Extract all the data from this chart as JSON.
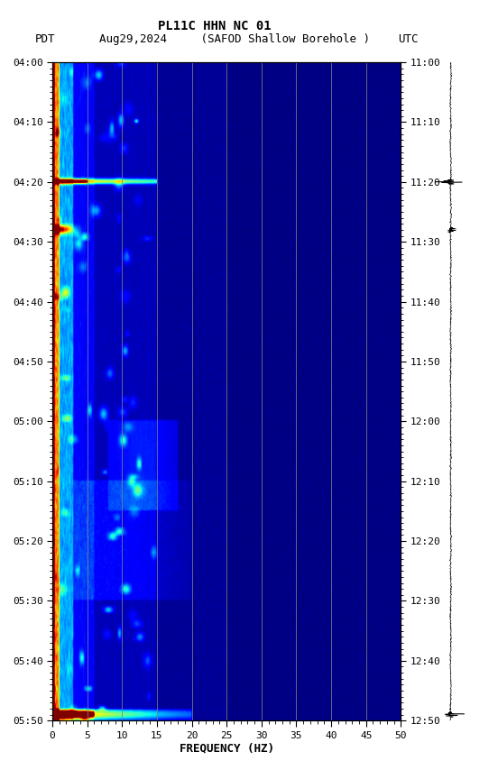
{
  "title_line1": "PL11C HHN NC 01",
  "title_line2_left": "PDT",
  "title_line2_mid": "Aug29,2024     (SAFOD Shallow Borehole )",
  "title_line2_right": "UTC",
  "xlabel": "FREQUENCY (HZ)",
  "freq_min": 0,
  "freq_max": 50,
  "yticks_pdt": [
    "04:00",
    "04:10",
    "04:20",
    "04:30",
    "04:40",
    "04:50",
    "05:00",
    "05:10",
    "05:20",
    "05:30",
    "05:40",
    "05:50"
  ],
  "yticks_utc": [
    "11:00",
    "11:10",
    "11:20",
    "11:30",
    "11:40",
    "11:50",
    "12:00",
    "12:10",
    "12:20",
    "12:30",
    "12:40",
    "12:50"
  ],
  "freq_gridlines": [
    5,
    10,
    15,
    20,
    25,
    30,
    35,
    40,
    45
  ],
  "xticks": [
    0,
    5,
    10,
    15,
    20,
    25,
    30,
    35,
    40,
    45,
    50
  ],
  "fig_bg_color": "#ffffff",
  "colormap": "jet",
  "spectrogram_seed": 123,
  "n_time": 700,
  "n_freq": 500,
  "total_minutes": 110
}
